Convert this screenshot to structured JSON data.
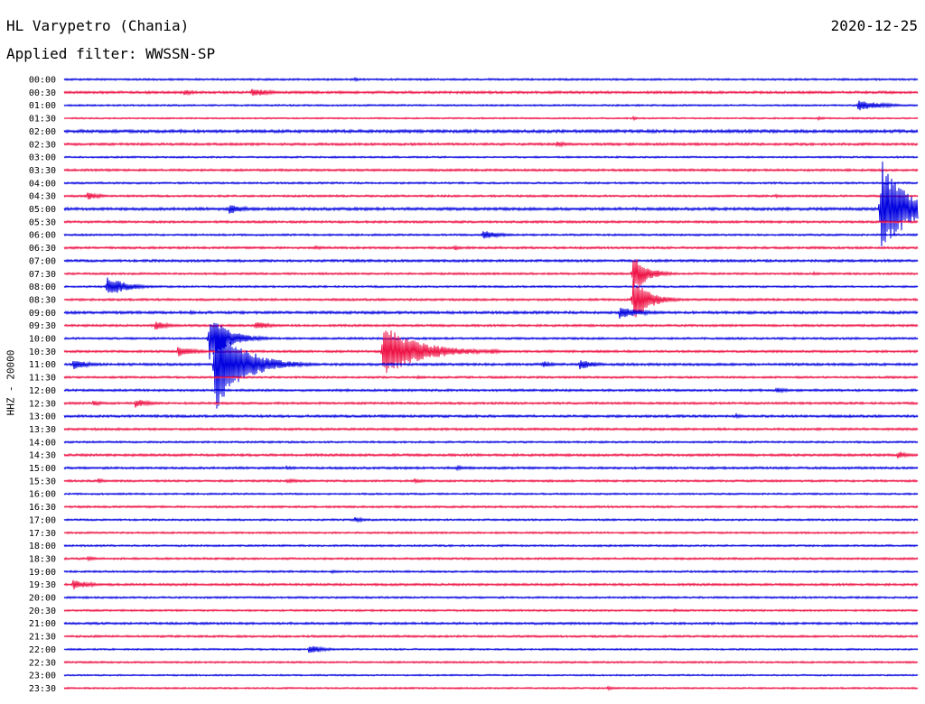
{
  "header": {
    "station": "HL Varypetro (Chania)",
    "date": "2020-12-25",
    "filter": "Applied filter: WWSSN-SP"
  },
  "chart_data": {
    "type": "line",
    "title": "HL Varypetro (Chania)",
    "ylabel": "HHZ - 20000",
    "xlabel": "",
    "colors": {
      "even_rows": "#0000e0",
      "odd_rows": "#ee1144"
    },
    "rows": [
      "00:00",
      "00:30",
      "01:00",
      "01:30",
      "02:00",
      "02:30",
      "03:00",
      "03:30",
      "04:00",
      "04:30",
      "05:00",
      "05:30",
      "06:00",
      "06:30",
      "07:00",
      "07:30",
      "08:00",
      "08:30",
      "09:00",
      "09:30",
      "10:00",
      "10:30",
      "11:00",
      "11:30",
      "12:00",
      "12:30",
      "13:00",
      "13:30",
      "14:00",
      "14:30",
      "15:00",
      "15:30",
      "16:00",
      "16:30",
      "17:00",
      "17:30",
      "18:00",
      "18:30",
      "19:00",
      "19:30",
      "20:00",
      "20:30",
      "21:00",
      "21:30",
      "22:00",
      "22:30",
      "23:00",
      "23:30"
    ],
    "row_minutes": 30,
    "noise": [
      1.0,
      1.3,
      0.9,
      0.8,
      1.6,
      1.3,
      0.9,
      1.2,
      1.0,
      1.1,
      1.5,
      1.2,
      1.0,
      1.2,
      1.3,
      1.1,
      1.0,
      1.2,
      1.4,
      1.2,
      1.1,
      1.2,
      1.3,
      1.1,
      1.2,
      1.2,
      1.3,
      1.2,
      1.0,
      1.3,
      1.2,
      1.1,
      0.9,
      1.1,
      1.0,
      1.0,
      1.0,
      1.1,
      1.0,
      1.2,
      1.0,
      1.0,
      1.2,
      1.1,
      0.9,
      1.0,
      0.8,
      0.9
    ],
    "events": [
      {
        "row": "00:00",
        "minute": 10.2,
        "amplitude": 2,
        "duration": 0.5
      },
      {
        "row": "00:30",
        "minute": 4.2,
        "amplitude": 3,
        "duration": 1.0
      },
      {
        "row": "00:30",
        "minute": 6.6,
        "amplitude": 5,
        "duration": 1.2
      },
      {
        "row": "01:00",
        "minute": 27.9,
        "amplitude": 6,
        "duration": 1.6
      },
      {
        "row": "01:30",
        "minute": 20.0,
        "amplitude": 2,
        "duration": 0.4
      },
      {
        "row": "01:30",
        "minute": 26.5,
        "amplitude": 2,
        "duration": 0.5
      },
      {
        "row": "02:30",
        "minute": 17.3,
        "amplitude": 3,
        "duration": 1.0
      },
      {
        "row": "04:30",
        "minute": 0.8,
        "amplitude": 5,
        "duration": 0.8
      },
      {
        "row": "04:30",
        "minute": 25.0,
        "amplitude": 2,
        "duration": 0.6
      },
      {
        "row": "05:00",
        "minute": 5.8,
        "amplitude": 6,
        "duration": 1.0
      },
      {
        "row": "05:00",
        "minute": 28.7,
        "amplitude": 58,
        "duration": 1.5
      },
      {
        "row": "06:00",
        "minute": 14.7,
        "amplitude": 6,
        "duration": 1.0
      },
      {
        "row": "06:30",
        "minute": 13.7,
        "amplitude": 3,
        "duration": 0.5
      },
      {
        "row": "06:30",
        "minute": 8.8,
        "amplitude": 2,
        "duration": 1.0
      },
      {
        "row": "07:30",
        "minute": 20.0,
        "amplitude": 22,
        "duration": 0.9
      },
      {
        "row": "07:30",
        "minute": 26.3,
        "amplitude": 2,
        "duration": 0.6
      },
      {
        "row": "08:00",
        "minute": 1.5,
        "amplitude": 12,
        "duration": 1.2
      },
      {
        "row": "08:30",
        "minute": 20.0,
        "amplitude": 26,
        "duration": 1.0
      },
      {
        "row": "09:00",
        "minute": 19.5,
        "amplitude": 7,
        "duration": 1.5
      },
      {
        "row": "09:00",
        "minute": 4.4,
        "amplitude": 2,
        "duration": 0.8
      },
      {
        "row": "09:00",
        "minute": 10.8,
        "amplitude": 2,
        "duration": 0.5
      },
      {
        "row": "09:30",
        "minute": 3.2,
        "amplitude": 5,
        "duration": 0.9
      },
      {
        "row": "09:30",
        "minute": 6.7,
        "amplitude": 5,
        "duration": 1.0
      },
      {
        "row": "10:00",
        "minute": 5.1,
        "amplitude": 25,
        "duration": 1.3
      },
      {
        "row": "10:30",
        "minute": 4.0,
        "amplitude": 6,
        "duration": 1.1
      },
      {
        "row": "10:30",
        "minute": 11.2,
        "amplitude": 30,
        "duration": 2.3
      },
      {
        "row": "10:30",
        "minute": 15.0,
        "amplitude": 3,
        "duration": 0.8
      },
      {
        "row": "11:00",
        "minute": 0.3,
        "amplitude": 6,
        "duration": 1.0
      },
      {
        "row": "11:00",
        "minute": 5.3,
        "amplitude": 55,
        "duration": 1.7
      },
      {
        "row": "11:00",
        "minute": 16.8,
        "amplitude": 4,
        "duration": 0.7
      },
      {
        "row": "11:00",
        "minute": 18.1,
        "amplitude": 6,
        "duration": 1.0
      },
      {
        "row": "11:30",
        "minute": 12.4,
        "amplitude": 2,
        "duration": 0.5
      },
      {
        "row": "12:00",
        "minute": 25.0,
        "amplitude": 3,
        "duration": 1.0
      },
      {
        "row": "12:30",
        "minute": 1.0,
        "amplitude": 3,
        "duration": 0.8
      },
      {
        "row": "12:30",
        "minute": 2.5,
        "amplitude": 5,
        "duration": 0.9
      },
      {
        "row": "13:00",
        "minute": 23.6,
        "amplitude": 3,
        "duration": 0.6
      },
      {
        "row": "13:30",
        "minute": 11.6,
        "amplitude": 2,
        "duration": 0.6
      },
      {
        "row": "14:30",
        "minute": 29.3,
        "amplitude": 5,
        "duration": 0.7
      },
      {
        "row": "15:00",
        "minute": 13.8,
        "amplitude": 3,
        "duration": 0.6
      },
      {
        "row": "15:00",
        "minute": 7.8,
        "amplitude": 2,
        "duration": 1.0
      },
      {
        "row": "15:30",
        "minute": 1.2,
        "amplitude": 3,
        "duration": 0.5
      },
      {
        "row": "15:30",
        "minute": 7.8,
        "amplitude": 2,
        "duration": 2.0
      },
      {
        "row": "15:30",
        "minute": 12.3,
        "amplitude": 3,
        "duration": 0.6
      },
      {
        "row": "17:00",
        "minute": 10.2,
        "amplitude": 3,
        "duration": 0.8
      },
      {
        "row": "18:30",
        "minute": 0.8,
        "amplitude": 3,
        "duration": 0.6
      },
      {
        "row": "19:00",
        "minute": 9.4,
        "amplitude": 2,
        "duration": 0.6
      },
      {
        "row": "19:30",
        "minute": 0.3,
        "amplitude": 6,
        "duration": 1.1
      },
      {
        "row": "20:30",
        "minute": 21.4,
        "amplitude": 2,
        "duration": 0.8
      },
      {
        "row": "22:00",
        "minute": 8.6,
        "amplitude": 5,
        "duration": 1.0
      },
      {
        "row": "23:30",
        "minute": 19.1,
        "amplitude": 2,
        "duration": 0.8
      }
    ]
  }
}
